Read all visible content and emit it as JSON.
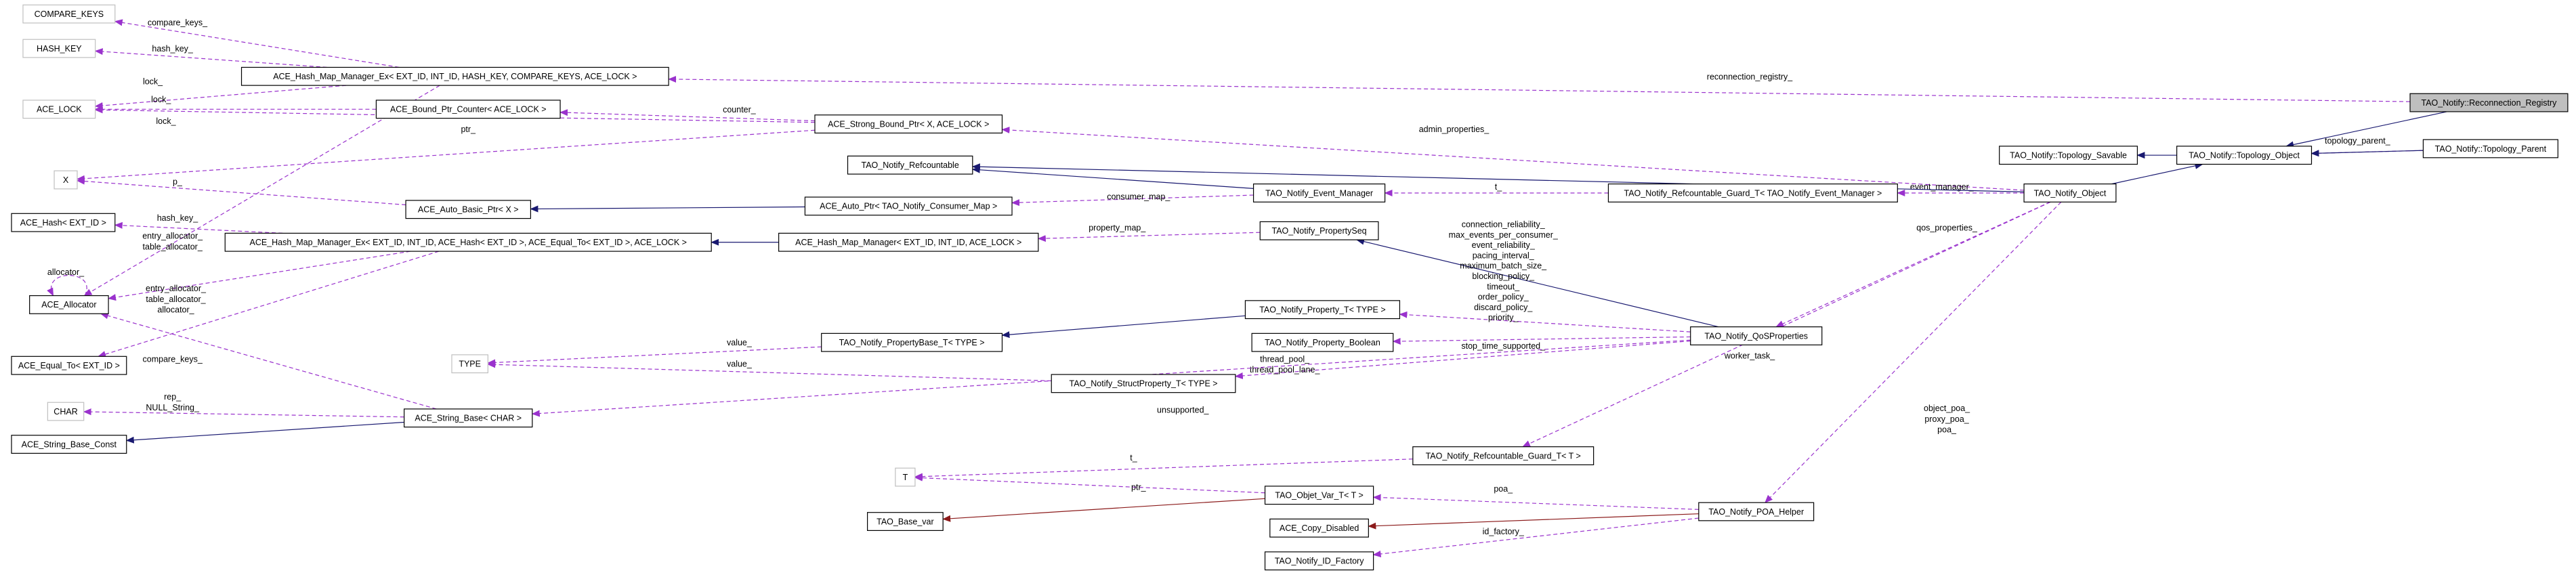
{
  "nodes": [
    {
      "label": "COMPARE_KEYS"
    },
    {
      "label": "HASH_KEY"
    },
    {
      "label": "ACE_Hash_Map_Manager_Ex< EXT_ID, INT_ID, HASH_KEY, COMPARE_KEYS, ACE_LOCK >"
    },
    {
      "label": "ACE_LOCK"
    },
    {
      "label": "ACE_Bound_Ptr_Counter< ACE_LOCK >"
    },
    {
      "label": "ACE_Strong_Bound_Ptr< X, ACE_LOCK >"
    },
    {
      "label": "X"
    },
    {
      "label": "TAO_Notify_Refcountable"
    },
    {
      "label": "ACE_Auto_Basic_Ptr< X >"
    },
    {
      "label": "ACE_Auto_Ptr< TAO_Notify_Consumer_Map >"
    },
    {
      "label": "TAO_Notify_Event_Manager"
    },
    {
      "label": "TAO_Notify_Refcountable_Guard_T< TAO_Notify_Event_Manager >"
    },
    {
      "label": "TAO_Notify_Object"
    },
    {
      "label": "TAO_Notify::Topology_Savable"
    },
    {
      "label": "TAO_Notify::Topology_Object"
    },
    {
      "label": "TAO_Notify::Topology_Parent"
    },
    {
      "label": "TAO_Notify::Reconnection_Registry"
    },
    {
      "label": "ACE_Hash< EXT_ID >"
    },
    {
      "label": "ACE_Hash_Map_Manager_Ex< EXT_ID, INT_ID, ACE_Hash< EXT_ID >, ACE_Equal_To< EXT_ID >, ACE_LOCK >"
    },
    {
      "label": "ACE_Hash_Map_Manager< EXT_ID, INT_ID, ACE_LOCK >"
    },
    {
      "label": "TAO_Notify_PropertySeq"
    },
    {
      "label": "ACE_Allocator"
    },
    {
      "label": "TAO_Notify_Property_T< TYPE >"
    },
    {
      "label": "ACE_Equal_To< EXT_ID >"
    },
    {
      "label": "TAO_Notify_PropertyBase_T< TYPE >"
    },
    {
      "label": "TYPE"
    },
    {
      "label": "TAO_Notify_Property_Boolean"
    },
    {
      "label": "TAO_Notify_QoSProperties"
    },
    {
      "label": "TAO_Notify_StructProperty_T< TYPE >"
    },
    {
      "label": "CHAR"
    },
    {
      "label": "ACE_String_Base< CHAR >"
    },
    {
      "label": "ACE_String_Base_Const"
    },
    {
      "label": "TAO_Notify_Refcountable_Guard_T< T >"
    },
    {
      "label": "T"
    },
    {
      "label": "TAO_Objet_Var_T< T >"
    },
    {
      "label": "TAO_Base_var"
    },
    {
      "label": "ACE_Copy_Disabled"
    },
    {
      "label": "TAO_Notify_POA_Helper"
    },
    {
      "label": "TAO_Notify_ID_Factory"
    }
  ],
  "edges": [
    {
      "label": [
        "compare_keys_"
      ]
    },
    {
      "label": [
        "hash_key_"
      ]
    },
    {
      "label": [
        "lock_"
      ]
    },
    {
      "label": [
        "lock_"
      ]
    },
    {
      "label": [
        "lock_"
      ]
    },
    {
      "label": [
        "reconnection_registry_"
      ]
    },
    {
      "label": [
        "counter_"
      ]
    },
    {
      "label": [
        "ptr_"
      ]
    },
    {
      "label": [
        "admin_properties_"
      ]
    },
    {
      "label": [
        "p_"
      ]
    },
    {
      "label": [
        "t_"
      ]
    },
    {
      "label": [
        "event_manager_"
      ]
    },
    {
      "label": [
        "topology_parent_"
      ]
    },
    {},
    {},
    {},
    {},
    {},
    {},
    {},
    {
      "label": [
        "consumer_map_"
      ]
    },
    {
      "label": [
        "hash_key_"
      ]
    },
    {
      "label": [
        "entry_allocator_",
        "table_allocator_"
      ]
    },
    {
      "label": [
        "entry_allocator_",
        "table_allocator_"
      ]
    },
    {},
    {
      "label": [
        "property_map_"
      ]
    },
    {
      "label": [
        "qos_properties_"
      ]
    },
    {
      "label": [
        "allocator_"
      ]
    },
    {
      "label": [
        "allocator_"
      ]
    },
    {},
    {
      "label": [
        "connection_reliability_",
        "max_events_per_consumer_",
        "event_reliability_",
        "pacing_interval_",
        "maximum_batch_size_",
        "blocking_policy_",
        "timeout_",
        "order_policy_",
        "discard_policy_",
        "priority_"
      ]
    },
    {
      "label": [
        "compare_keys_"
      ]
    },
    {
      "label": [
        "value_"
      ]
    },
    {
      "label": [
        "value_"
      ]
    },
    {},
    {
      "label": [
        "stop_time_supported_"
      ]
    },
    {
      "label": [
        "thread_pool_",
        "thread_pool_lane_"
      ]
    },
    {
      "label": [
        "rep_",
        "NULL_String_"
      ]
    },
    {},
    {
      "label": [
        "unsupported_"
      ]
    },
    {
      "label": [
        "worker_task_"
      ]
    },
    {
      "label": [
        "t_"
      ]
    },
    {
      "label": [
        "ptr_"
      ]
    },
    {},
    {
      "label": [
        "poa_"
      ]
    },
    {},
    {
      "label": [
        "id_factory_"
      ]
    },
    {
      "label": [
        "object_poa_",
        "proxy_poa_",
        "poa_"
      ]
    }
  ]
}
